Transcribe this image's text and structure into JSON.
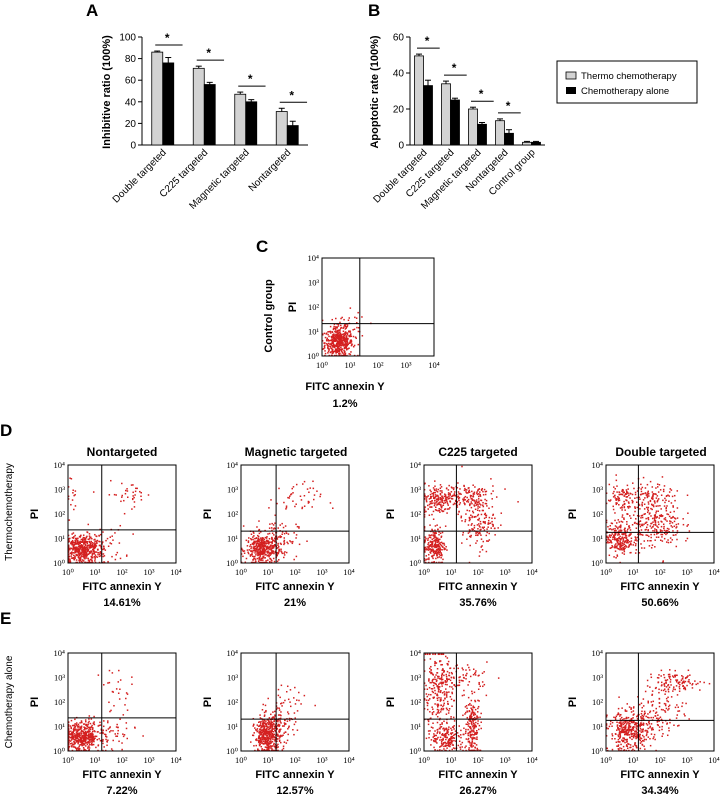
{
  "chart_data": [
    {
      "panel": "A",
      "type": "bar",
      "title": "",
      "ylabel": "Inhibitive ratio (100%)",
      "ylim": [
        0,
        100
      ],
      "yticks": [
        "0",
        "20",
        "40",
        "60",
        "80",
        "100"
      ],
      "categories": [
        "Double targeted",
        "C225 targeted",
        "Magnetic targeted",
        "Nontargeted"
      ],
      "series": [
        {
          "name": "Thermo chemotherapy",
          "values": [
            86,
            71,
            47,
            31
          ],
          "errors": [
            1,
            2,
            2,
            3
          ]
        },
        {
          "name": "Chemotherapy alone",
          "values": [
            76,
            56,
            40,
            18
          ],
          "errors": [
            5,
            2,
            2,
            4
          ]
        }
      ],
      "significance": [
        "*",
        "*",
        "*",
        "*"
      ]
    },
    {
      "panel": "B",
      "type": "bar",
      "ylabel": "Apoptotic rate (100%)",
      "ylim": [
        0,
        60
      ],
      "yticks": [
        "0",
        "20",
        "40",
        "60"
      ],
      "categories": [
        "Double targeted",
        "C225 targeted",
        "Magnetic targeted",
        "Nontargeted",
        "Control group"
      ],
      "series": [
        {
          "name": "Thermo chemotherapy",
          "values": [
            49.5,
            34,
            20,
            13.5,
            1.5
          ],
          "errors": [
            1,
            1.5,
            1,
            1,
            0.5
          ]
        },
        {
          "name": "Chemotherapy alone",
          "values": [
            33,
            25,
            11.5,
            6.5,
            1.5
          ],
          "errors": [
            3,
            1,
            1,
            2,
            0.5
          ]
        }
      ],
      "significance": [
        "*",
        "*",
        "*",
        "*",
        ""
      ],
      "legend": [
        "Thermo chemotherapy",
        "Chemotherapy alone"
      ],
      "legend_position": "top-right"
    },
    {
      "panel": "C",
      "type": "scatter",
      "xlabel": "FITC annexin Y",
      "ylabel": "PI",
      "ylabel_outer": "Control group",
      "percent": "1.2%",
      "xlim": [
        1,
        10000
      ],
      "ylim": [
        1,
        10000
      ],
      "xticks": [
        "10⁰",
        "10¹",
        "10²",
        "10³",
        "10⁴"
      ],
      "yticks": [
        "10⁰",
        "10¹",
        "10²",
        "10³",
        "10⁴"
      ],
      "gate": [
        20,
        22
      ]
    }
  ],
  "panel_labels": {
    "a": "A",
    "b": "B",
    "c": "C",
    "d": "D",
    "e": "E"
  },
  "row_labels": {
    "d": "Thermochemotherapy",
    "e": "Chemotherapy alone"
  },
  "flow_columns": [
    "Nontargeted",
    "Magnetic targeted",
    "C225 targeted",
    "Double targeted"
  ],
  "flow_axis": {
    "xlabel": "FITC annexin Y",
    "ylabel": "PI",
    "ticks": [
      "10⁰",
      "10¹",
      "10²",
      "10³",
      "10⁴"
    ]
  },
  "flow_percents": {
    "d": [
      "14.61%",
      "21%",
      "35.76%",
      "50.66%"
    ],
    "e": [
      "7.22%",
      "12.57%",
      "26.27%",
      "34.34%"
    ]
  },
  "colors": {
    "dots": "#d42020",
    "thermo": "#d3d3d3",
    "chemo": "#000000",
    "axis": "#000000"
  }
}
